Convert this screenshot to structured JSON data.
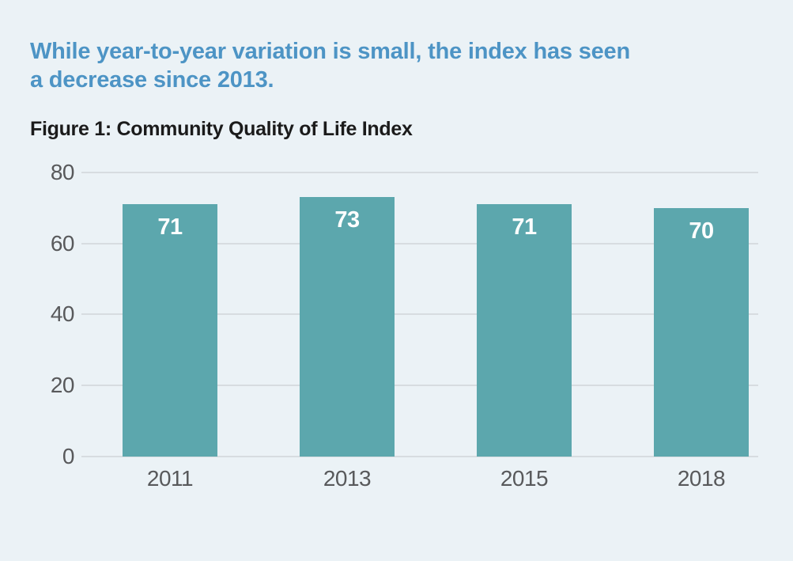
{
  "page": {
    "background_color": "#EBF2F6"
  },
  "heading": {
    "lines": [
      "While year-to-year variation is small, the index has seen",
      "a decrease since 2013."
    ],
    "color": "#4D94C5"
  },
  "chart_data": {
    "type": "bar",
    "title": "Figure 1: Community Quality of Life Index",
    "categories": [
      "2011",
      "2013",
      "2015",
      "2018"
    ],
    "values": [
      71,
      73,
      71,
      70
    ],
    "value_labels_shown": true,
    "yticks": [
      0,
      20,
      40,
      60,
      80
    ],
    "ylim": [
      0,
      80
    ],
    "xlabel": "",
    "ylabel": "",
    "grid": true,
    "legend": "none",
    "bar_color": "#5CA7AD",
    "value_label_color": "#FFFFFF",
    "axis_text_color": "#58595B",
    "gridline_color": "#D7DCE0",
    "title_color": "#1B1B1B"
  }
}
